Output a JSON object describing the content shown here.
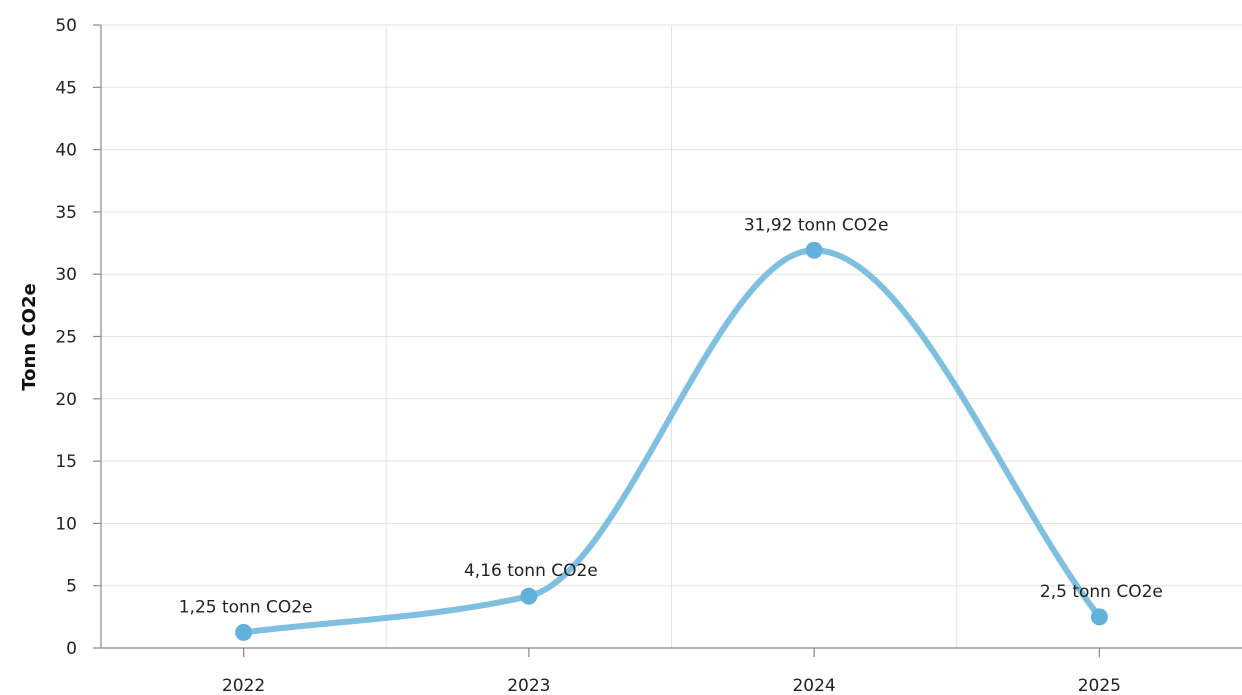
{
  "chart_data": {
    "type": "line",
    "title": "",
    "xlabel": "",
    "ylabel": "Tonn CO2e",
    "categories": [
      "2022",
      "2023",
      "2024",
      "2025"
    ],
    "series": [
      {
        "values": [
          1.25,
          4.16,
          31.92,
          2.5
        ],
        "data_labels": [
          "1,25 tonn CO2e",
          "4,16 tonn CO2e",
          "31,92 tonn CO2e",
          "2,5 tonn CO2e"
        ],
        "color": "#7fc0e0",
        "marker_color": "#62b1dc"
      }
    ],
    "ylim": [
      0,
      50
    ],
    "y_ticks": [
      "0",
      "5",
      "10",
      "15",
      "20",
      "25",
      "30",
      "35",
      "40",
      "45",
      "50"
    ],
    "grid": true,
    "smooth": true,
    "legend": "none"
  }
}
